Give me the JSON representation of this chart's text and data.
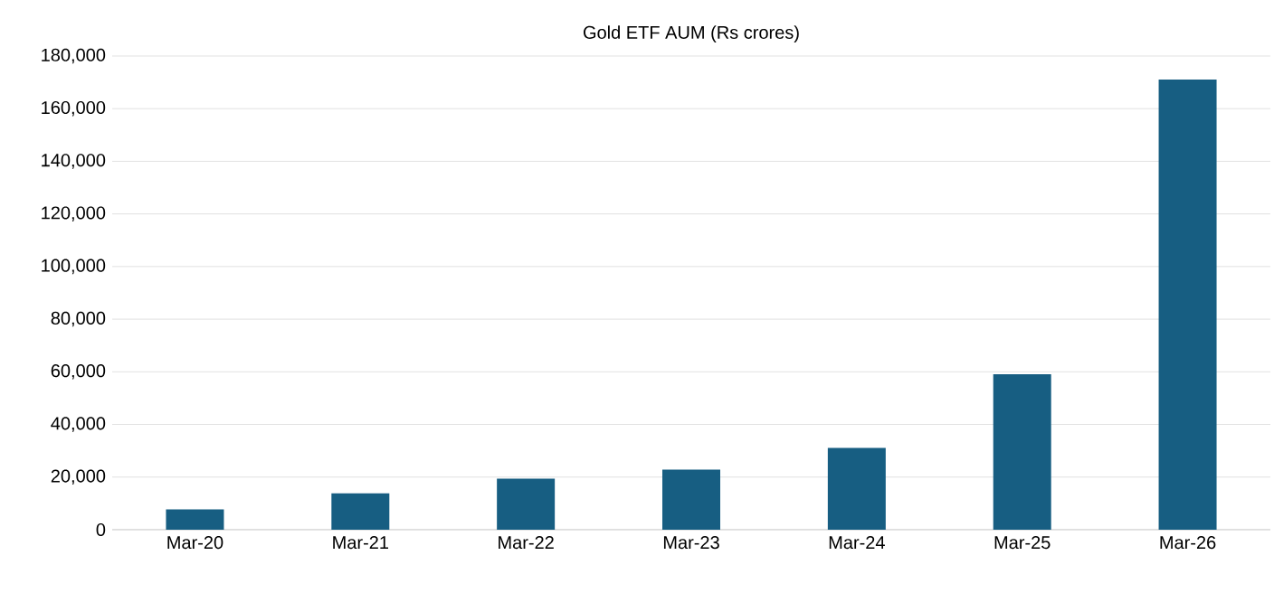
{
  "chart_data": {
    "type": "bar",
    "title": "Gold ETF AUM (Rs crores)",
    "categories": [
      "Mar-20",
      "Mar-21",
      "Mar-22",
      "Mar-23",
      "Mar-24",
      "Mar-25",
      "Mar-26"
    ],
    "values": [
      7700,
      13800,
      19400,
      22800,
      31100,
      59100,
      171100
    ],
    "color": "#175e82",
    "ylim": [
      0,
      180000
    ],
    "yticks": [
      0,
      {
        "value": 20000,
        "label": "20,000"
      },
      {
        "value": 40000,
        "label": "40,000"
      },
      {
        "value": 60000,
        "label": "60,000"
      },
      {
        "value": 80000,
        "label": "80,000"
      },
      {
        "value": 100000,
        "label": "100,000"
      },
      {
        "value": 120000,
        "label": "120,000"
      },
      {
        "value": 140000,
        "label": "140,000"
      },
      {
        "value": 160000,
        "label": "160,000"
      },
      {
        "value": 180000,
        "label": "180,000"
      }
    ],
    "grid": "y"
  }
}
